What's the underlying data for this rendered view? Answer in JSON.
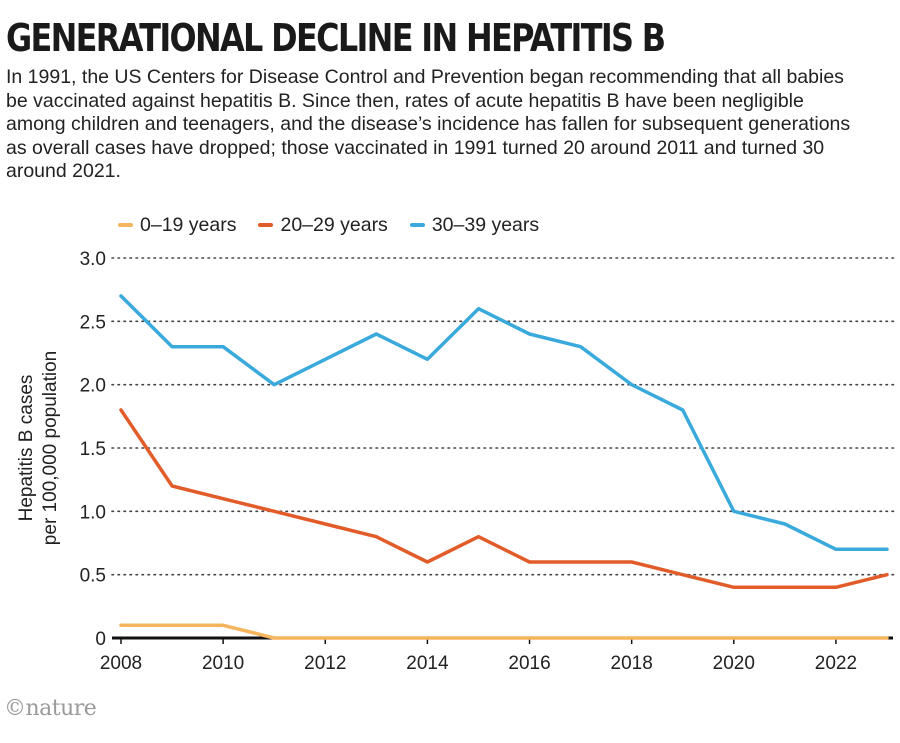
{
  "title": "GENERATIONAL DECLINE IN HEPATITIS B",
  "subtitle": "In 1991, the US Centers for Disease Control and Prevention began recommending that all babies be vaccinated against hepatitis B. Since then, rates of acute hepatitis B have been negligible among children and teenagers, and the disease’s incidence has fallen for subsequent generations as overall cases have dropped; those vaccinated in 1991 turned 20 around 2011 and turned 30 around 2021.",
  "logo": "©nature",
  "colors": {
    "s0": "#f5b55c",
    "s1": "#e25c2a",
    "s2": "#3aa9dc"
  },
  "chart_data": {
    "type": "line",
    "x": [
      2008,
      2009,
      2010,
      2011,
      2012,
      2013,
      2014,
      2015,
      2016,
      2017,
      2018,
      2019,
      2020,
      2021,
      2022,
      2023
    ],
    "series": [
      {
        "name": "0–19 years",
        "values": [
          0.1,
          0.1,
          0.1,
          0,
          0,
          0,
          0,
          0,
          0,
          0,
          0,
          0,
          0,
          0,
          0,
          0
        ]
      },
      {
        "name": "20–29 years",
        "values": [
          1.8,
          1.2,
          1.1,
          1.0,
          0.9,
          0.8,
          0.6,
          0.8,
          0.6,
          0.6,
          0.6,
          0.5,
          0.4,
          0.4,
          0.4,
          0.5
        ]
      },
      {
        "name": "30–39 years",
        "values": [
          2.7,
          2.3,
          2.3,
          2.0,
          2.2,
          2.4,
          2.2,
          2.6,
          2.4,
          2.3,
          2.0,
          1.8,
          1.0,
          0.9,
          0.7,
          0.7
        ]
      }
    ],
    "ylabel": [
      "Hepatitis B cases",
      "per 100,000 population"
    ],
    "xlim": [
      2008,
      2023
    ],
    "ylim": [
      0,
      3.0
    ],
    "yticks": [
      0,
      0.5,
      1.0,
      1.5,
      2.0,
      2.5,
      3.0
    ],
    "ytick_labels": [
      "0",
      "0.5",
      "1.0",
      "1.5",
      "2.0",
      "2.5",
      "3.0"
    ],
    "xticks": [
      2008,
      2010,
      2012,
      2014,
      2016,
      2018,
      2020,
      2022
    ],
    "xtick_labels": [
      "2008",
      "2010",
      "2012",
      "2014",
      "2016",
      "2018",
      "2020",
      "2022"
    ],
    "grid": "horizontal dotted",
    "legend": "top-left"
  }
}
